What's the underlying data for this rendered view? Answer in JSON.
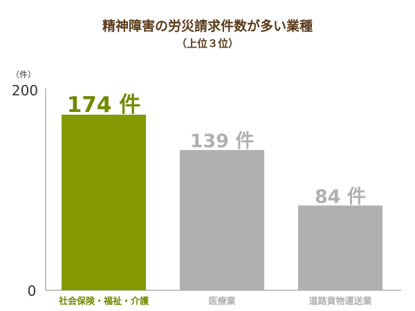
{
  "chart_data": {
    "type": "bar",
    "title": "精神障害の労災請求件数が多い業種",
    "subtitle": "（上位３位）",
    "ylabel": "（件）",
    "ylim": [
      0,
      200
    ],
    "yticks": [
      "0",
      "200"
    ],
    "categories": [
      "社会保険・福祉・介護",
      "医療業",
      "道路貨物運送業"
    ],
    "values": [
      174,
      139,
      84
    ],
    "value_labels": [
      "174 件",
      "139 件",
      "84 件"
    ],
    "colors": {
      "highlight": "#859a00",
      "normal": "#b0b0b0",
      "highlight_label": "#6f8a00",
      "normal_label": "#b0b0b0",
      "title": "#5a3a1a"
    }
  }
}
